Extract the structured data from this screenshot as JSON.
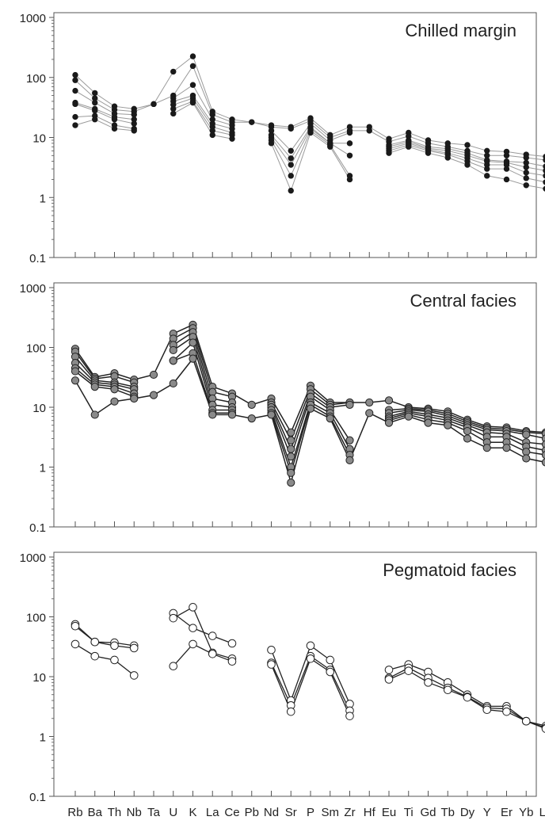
{
  "chart_data": [
    {
      "type": "line",
      "title": "Chilled margin",
      "yscale": "log",
      "ylim": [
        0.1,
        1000
      ],
      "yticks": [
        "0.1",
        "1",
        "10",
        "100",
        "1000"
      ],
      "categories": [
        "Rb",
        "Ba",
        "Th",
        "Nb",
        "Ta",
        "U",
        "K",
        "La",
        "Ce",
        "Pb",
        "Nd",
        "Sr",
        "P",
        "Sm",
        "Zr",
        "Hf",
        "Eu",
        "Ti",
        "Gd",
        "Tb",
        "Dy",
        "Y",
        "Er",
        "Yb",
        "Lu"
      ],
      "marker": "filled-black",
      "series": [
        {
          "values": [
            110,
            55,
            33,
            30,
            36,
            125,
            225,
            27,
            20,
            18,
            16,
            15,
            21,
            11,
            15,
            15,
            9.5,
            12,
            9,
            8,
            7.5,
            6,
            5.8,
            5.2,
            4.8
          ]
        },
        {
          "values": [
            90,
            45,
            29,
            27,
            36,
            50,
            155,
            24,
            18,
            18,
            15,
            14,
            19,
            10,
            13,
            13,
            8.5,
            10.5,
            8,
            7,
            6,
            5,
            5,
            4.6,
            4.2
          ]
        },
        {
          "values": [
            60,
            38,
            25,
            24,
            null,
            45,
            75,
            20,
            16,
            null,
            13,
            6,
            17,
            9,
            12,
            null,
            7.5,
            9,
            7,
            6.5,
            5.5,
            4.2,
            4,
            3.8,
            3.3
          ]
        },
        {
          "values": [
            38,
            30,
            22,
            20,
            null,
            40,
            50,
            17,
            14,
            null,
            11,
            4.5,
            15,
            8,
            8,
            null,
            7,
            8.5,
            6.6,
            6,
            5,
            4,
            3.8,
            3.2,
            2.8
          ]
        },
        {
          "values": [
            36,
            28,
            20,
            17,
            null,
            35,
            45,
            15,
            12,
            null,
            10,
            3.5,
            14,
            8,
            5,
            null,
            6.5,
            8,
            6.3,
            5.5,
            4.5,
            3.5,
            3.5,
            2.6,
            2.3
          ]
        },
        {
          "values": [
            22,
            23,
            16,
            14,
            null,
            30,
            40,
            13,
            11,
            null,
            9,
            2.3,
            13,
            7.5,
            2.3,
            null,
            6,
            7.5,
            6,
            5.2,
            4,
            3,
            3,
            2.1,
            1.8
          ]
        },
        {
          "values": [
            16,
            20,
            14,
            13,
            null,
            25,
            38,
            11,
            9.5,
            null,
            8,
            1.3,
            12,
            7,
            2,
            null,
            5.5,
            7,
            5.5,
            4.6,
            3.5,
            2.3,
            2,
            1.6,
            1.4
          ]
        }
      ]
    },
    {
      "type": "line",
      "title": "Central facies",
      "yscale": "log",
      "ylim": [
        0.1,
        1000
      ],
      "yticks": [
        "0.1",
        "1",
        "10",
        "100",
        "1000"
      ],
      "categories": [
        "Rb",
        "Ba",
        "Th",
        "Nb",
        "Ta",
        "U",
        "K",
        "La",
        "Ce",
        "Pb",
        "Nd",
        "Sr",
        "P",
        "Sm",
        "Zr",
        "Hf",
        "Eu",
        "Ti",
        "Gd",
        "Tb",
        "Dy",
        "Y",
        "Er",
        "Yb",
        "Lu"
      ],
      "marker": "filled-grey",
      "series": [
        {
          "values": [
            95,
            32,
            37,
            29,
            35,
            170,
            240,
            22,
            17,
            11,
            14,
            3.8,
            23,
            12,
            12,
            12,
            13,
            10,
            9.5,
            8.5,
            6.2,
            4.8,
            4.6,
            4,
            3.8
          ]
        },
        {
          "values": [
            85,
            30,
            33,
            26,
            null,
            140,
            210,
            18,
            15,
            null,
            12,
            2.8,
            20,
            11,
            12,
            null,
            9,
            9.5,
            9,
            7.8,
            5.8,
            4.5,
            4.3,
            3.8,
            3.6
          ]
        },
        {
          "values": [
            70,
            28,
            26,
            22,
            null,
            110,
            180,
            14,
            12,
            null,
            11,
            2,
            17,
            10,
            11,
            null,
            8,
            9,
            8.5,
            7.2,
            5.4,
            4.2,
            4,
            3.5,
            3
          ]
        },
        {
          "values": [
            55,
            26,
            24,
            20,
            null,
            90,
            150,
            11,
            10,
            null,
            10,
            1.5,
            15,
            9,
            2.8,
            null,
            7,
            8.5,
            7.6,
            6.6,
            5,
            3.8,
            3.6,
            2.6,
            2.4
          ]
        },
        {
          "values": [
            45,
            24,
            22,
            17,
            null,
            60,
            120,
            9,
            9,
            null,
            9,
            1,
            12,
            8,
            2,
            null,
            6.5,
            8,
            7,
            6,
            4.6,
            3.2,
            3.2,
            2.2,
            1.9
          ]
        },
        {
          "values": [
            40,
            22,
            20,
            15,
            null,
            60,
            80,
            8,
            8,
            null,
            8,
            0.8,
            11,
            7,
            1.6,
            null,
            6,
            7.5,
            6.2,
            5.5,
            4,
            2.6,
            2.6,
            1.8,
            1.6
          ]
        },
        {
          "values": [
            28,
            7.5,
            12.5,
            14,
            16,
            25,
            65,
            7.5,
            7.5,
            6.5,
            7.5,
            0.55,
            9.5,
            6.5,
            1.3,
            8,
            5.5,
            7,
            5.5,
            5,
            3,
            2.1,
            2.1,
            1.4,
            1.2
          ]
        }
      ]
    },
    {
      "type": "line",
      "title": "Pegmatoid facies",
      "yscale": "log",
      "ylim": [
        0.1,
        1000
      ],
      "yticks": [
        "0.1",
        "1",
        "10",
        "100",
        "1000"
      ],
      "categories": [
        "Rb",
        "Ba",
        "Th",
        "Nb",
        "Ta",
        "U",
        "K",
        "La",
        "Ce",
        "Pb",
        "Nd",
        "Sr",
        "P",
        "Sm",
        "Zr",
        "Hf",
        "Eu",
        "Ti",
        "Gd",
        "Tb",
        "Dy",
        "Y",
        "Er",
        "Yb",
        "Lu"
      ],
      "xlabels": [
        "Rb",
        "Ba",
        "Th",
        "Nb",
        "Ta",
        "U",
        "K",
        "La",
        "Ce",
        "Pb",
        "Nd",
        "Sr",
        "P",
        "Sm",
        "Zr",
        "Hf",
        "Eu",
        "Ti",
        "Gd",
        "Tb",
        "Dy",
        "Y",
        "Er",
        "Yb",
        "Lu"
      ],
      "marker": "open-white",
      "series": [
        {
          "values": [
            75,
            38,
            37,
            33,
            null,
            115,
            65,
            48,
            36,
            null,
            28,
            4,
            33,
            19,
            3.5,
            null,
            13,
            16,
            12,
            8,
            5,
            3.2,
            3.2,
            1.8,
            1.5
          ]
        },
        {
          "values": [
            70,
            38,
            33,
            30,
            null,
            95,
            145,
            25,
            20,
            null,
            17,
            3.3,
            22,
            13,
            2.7,
            null,
            9.5,
            14,
            9.5,
            6.5,
            4.6,
            3,
            2.9,
            1.8,
            1.4
          ]
        },
        {
          "values": [
            35,
            22,
            19,
            10.5,
            null,
            15,
            35,
            24,
            18,
            null,
            16,
            2.6,
            20,
            12,
            2.2,
            null,
            9,
            12.5,
            8,
            6,
            4.5,
            2.8,
            2.6,
            1.8,
            1.35
          ]
        }
      ]
    }
  ]
}
